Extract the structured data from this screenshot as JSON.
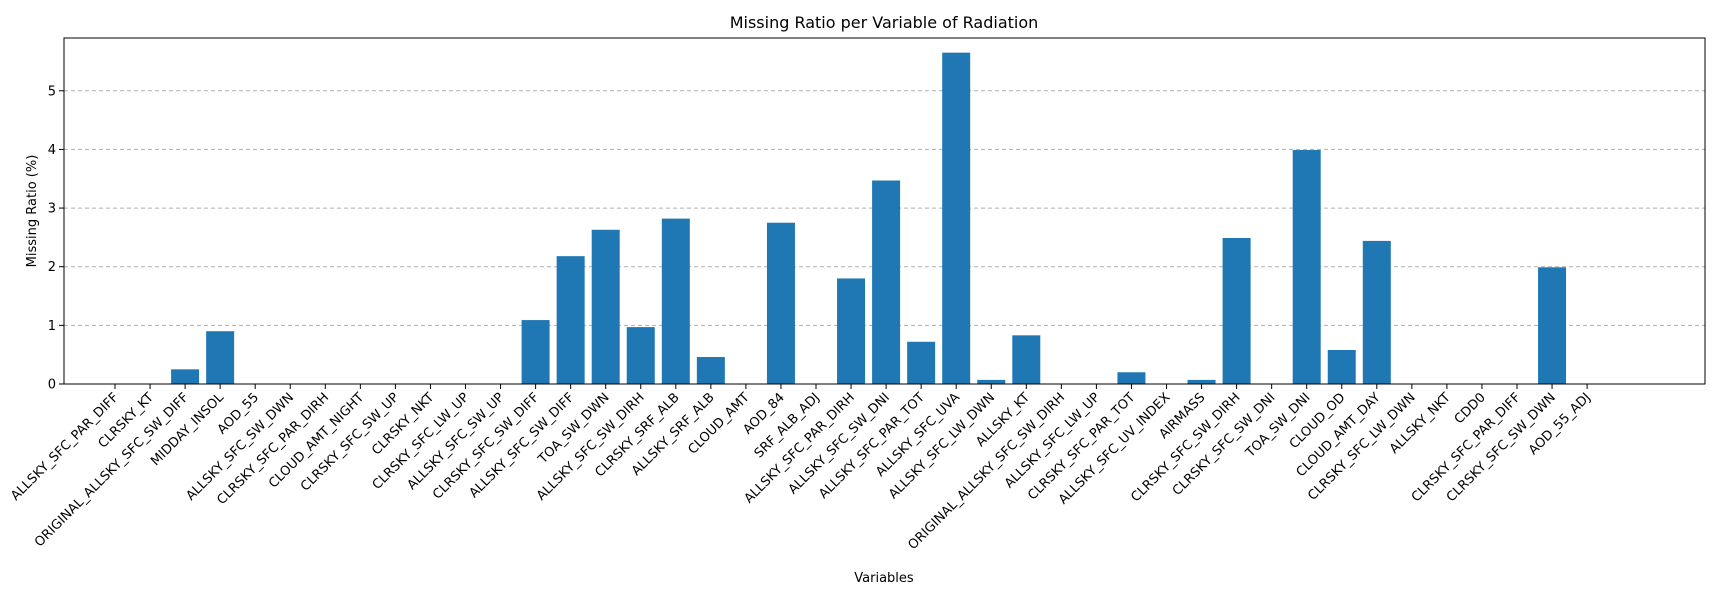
{
  "chart_data": {
    "type": "bar",
    "title": "Missing Ratio per Variable of Radiation",
    "xlabel": "Variables",
    "ylabel": "Missing Ratio (%)",
    "ylim": [
      0,
      5.9
    ],
    "yticks": [
      0,
      1,
      2,
      3,
      4,
      5
    ],
    "grid": "y-dashed",
    "bar_color": "#1f77b4",
    "grid_color": "#b0b0b0",
    "categories": [
      "ALLSKY_SFC_PAR_DIFF",
      "CLRSKY_KT",
      "ORIGINAL_ALLSKY_SFC_SW_DIFF",
      "MIDDAY_INSOL",
      "AOD_55",
      "ALLSKY_SFC_SW_DWN",
      "CLRSKY_SFC_PAR_DIRH",
      "CLOUD_AMT_NIGHT",
      "CLRSKY_SFC_SW_UP",
      "CLRSKY_NKT",
      "CLRSKY_SFC_LW_UP",
      "ALLSKY_SFC_SW_UP",
      "CLRSKY_SFC_SW_DIFF",
      "ALLSKY_SFC_SW_DIFF",
      "TOA_SW_DWN",
      "ALLSKY_SFC_SW_DIRH",
      "CLRSKY_SRF_ALB",
      "ALLSKY_SRF_ALB",
      "CLOUD_AMT",
      "AOD_84",
      "SRF_ALB_ADJ",
      "ALLSKY_SFC_PAR_DIRH",
      "ALLSKY_SFC_SW_DNI",
      "ALLSKY_SFC_PAR_TOT",
      "ALLSKY_SFC_UVA",
      "ALLSKY_SFC_LW_DWN",
      "ALLSKY_KT",
      "ORIGINAL_ALLSKY_SFC_SW_DIRH",
      "ALLSKY_SFC_LW_UP",
      "CLRSKY_SFC_PAR_TOT",
      "ALLSKY_SFC_UV_INDEX",
      "AIRMASS",
      "CLRSKY_SFC_SW_DIRH",
      "CLRSKY_SFC_SW_DNI",
      "TOA_SW_DNI",
      "CLOUD_OD",
      "CLOUD_AMT_DAY",
      "CLRSKY_SFC_LW_DWN",
      "ALLSKY_NKT",
      "CDD0",
      "CLRSKY_SFC_PAR_DIFF",
      "CLRSKY_SFC_SW_DWN",
      "AOD_55_ADJ"
    ],
    "values": [
      0,
      0,
      0.25,
      0.9,
      0,
      0,
      0,
      0,
      0,
      0,
      0,
      0,
      1.09,
      2.18,
      2.63,
      0.97,
      2.82,
      0.46,
      0,
      2.75,
      0,
      1.8,
      3.47,
      0.72,
      5.65,
      0.07,
      0.83,
      0,
      0,
      0.2,
      0,
      0.07,
      2.49,
      0,
      3.99,
      0.58,
      2.44,
      0,
      0,
      0,
      0,
      1.99,
      0
    ]
  }
}
